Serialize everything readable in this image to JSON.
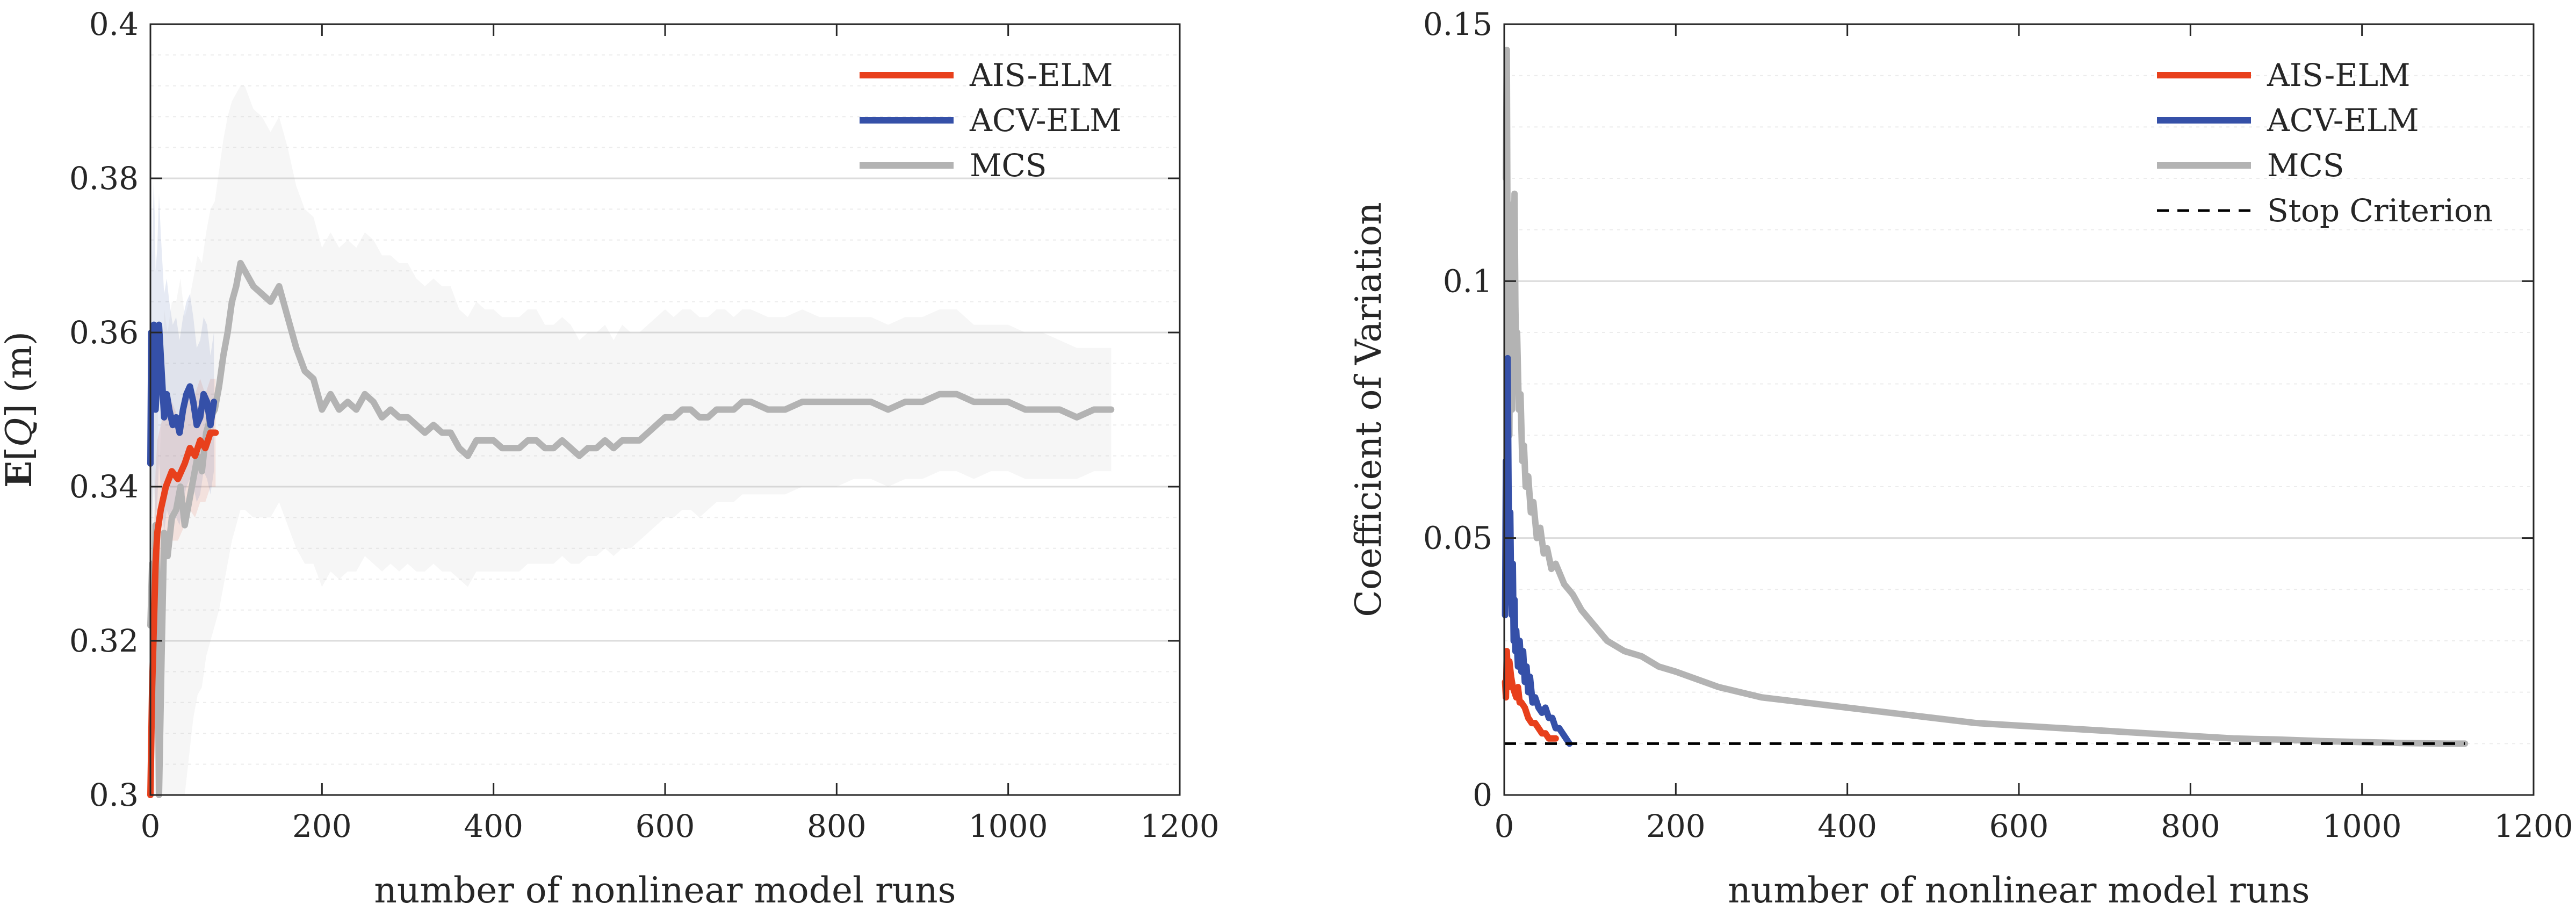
{
  "chart_data": [
    {
      "type": "line",
      "xlabel": "number of nonlinear model runs",
      "ylabel_prefix": "E",
      "ylabel_var": "Q",
      "ylabel_unit": " (m)",
      "xlim": [
        0,
        1200
      ],
      "ylim": [
        0.3,
        0.4
      ],
      "xticks": [
        0,
        200,
        400,
        600,
        800,
        1000,
        1200
      ],
      "yticks": [
        0.3,
        0.32,
        0.34,
        0.36,
        0.38,
        0.4
      ],
      "xtick_labels": [
        "0",
        "200",
        "400",
        "600",
        "800",
        "1000",
        "1200"
      ],
      "ytick_labels": [
        "0.3",
        "0.32",
        "0.34",
        "0.36",
        "0.38",
        "0.4"
      ],
      "grid": "horizontal",
      "legend_position": "top-right",
      "series": [
        {
          "name": "AIS-ELM",
          "color": "#e8401c",
          "x": [
            0,
            2,
            4,
            6,
            8,
            12,
            18,
            25,
            32,
            40,
            46,
            52,
            58,
            64,
            70,
            76
          ],
          "y": [
            0.3,
            0.314,
            0.322,
            0.33,
            0.334,
            0.337,
            0.34,
            0.342,
            0.341,
            0.343,
            0.345,
            0.344,
            0.346,
            0.345,
            0.347,
            0.347
          ],
          "band_lower": [
            0.3,
            0.3,
            0.31,
            0.318,
            0.322,
            0.326,
            0.33,
            0.333,
            0.333,
            0.335,
            0.337,
            0.336,
            0.338,
            0.338,
            0.34,
            0.34
          ],
          "band_upper": [
            0.32,
            0.33,
            0.334,
            0.342,
            0.346,
            0.348,
            0.35,
            0.351,
            0.349,
            0.351,
            0.353,
            0.352,
            0.354,
            0.352,
            0.354,
            0.354
          ]
        },
        {
          "name": "ACV-ELM",
          "color": "#3550a8",
          "x": [
            0,
            1,
            2,
            3,
            4,
            5,
            6,
            8,
            10,
            12,
            14,
            16,
            19,
            22,
            26,
            30,
            34,
            38,
            42,
            46,
            50,
            54,
            58,
            62,
            66,
            70,
            74
          ],
          "y": [
            0.343,
            0.36,
            0.351,
            0.357,
            0.361,
            0.356,
            0.35,
            0.354,
            0.361,
            0.357,
            0.353,
            0.349,
            0.352,
            0.35,
            0.348,
            0.349,
            0.347,
            0.35,
            0.352,
            0.353,
            0.351,
            0.348,
            0.349,
            0.352,
            0.351,
            0.348,
            0.351
          ],
          "band_lower": [
            0.315,
            0.34,
            0.335,
            0.338,
            0.342,
            0.338,
            0.335,
            0.338,
            0.343,
            0.34,
            0.337,
            0.334,
            0.337,
            0.336,
            0.335,
            0.336,
            0.335,
            0.338,
            0.34,
            0.341,
            0.34,
            0.338,
            0.339,
            0.342,
            0.341,
            0.339,
            0.342
          ],
          "band_upper": [
            0.37,
            0.38,
            0.37,
            0.376,
            0.38,
            0.375,
            0.368,
            0.371,
            0.378,
            0.373,
            0.369,
            0.365,
            0.367,
            0.364,
            0.361,
            0.362,
            0.359,
            0.362,
            0.364,
            0.365,
            0.362,
            0.358,
            0.359,
            0.362,
            0.361,
            0.357,
            0.36
          ]
        },
        {
          "name": "MCS",
          "color": "#b3b3b3",
          "x": [
            0,
            2,
            4,
            6,
            8,
            10,
            13,
            16,
            20,
            25,
            30,
            35,
            40,
            45,
            50,
            55,
            60,
            65,
            70,
            75,
            80,
            85,
            90,
            95,
            100,
            105,
            110,
            120,
            130,
            140,
            150,
            160,
            170,
            180,
            190,
            200,
            210,
            220,
            230,
            240,
            250,
            260,
            270,
            280,
            290,
            300,
            310,
            320,
            330,
            340,
            350,
            360,
            370,
            380,
            390,
            400,
            410,
            420,
            430,
            440,
            450,
            460,
            470,
            480,
            490,
            500,
            510,
            520,
            530,
            540,
            550,
            560,
            570,
            580,
            590,
            600,
            610,
            620,
            630,
            640,
            650,
            660,
            670,
            680,
            690,
            700,
            720,
            740,
            760,
            780,
            800,
            820,
            840,
            860,
            880,
            900,
            920,
            940,
            960,
            980,
            1000,
            1020,
            1040,
            1060,
            1080,
            1100,
            1120
          ],
          "y": [
            0.322,
            0.33,
            0.315,
            0.335,
            0.327,
            0.3,
            0.318,
            0.334,
            0.331,
            0.336,
            0.337,
            0.34,
            0.335,
            0.338,
            0.341,
            0.344,
            0.342,
            0.347,
            0.349,
            0.35,
            0.353,
            0.357,
            0.36,
            0.364,
            0.366,
            0.369,
            0.368,
            0.366,
            0.365,
            0.364,
            0.366,
            0.362,
            0.358,
            0.355,
            0.354,
            0.35,
            0.352,
            0.35,
            0.351,
            0.35,
            0.352,
            0.351,
            0.349,
            0.35,
            0.349,
            0.349,
            0.348,
            0.347,
            0.348,
            0.347,
            0.347,
            0.345,
            0.344,
            0.346,
            0.346,
            0.346,
            0.345,
            0.345,
            0.345,
            0.346,
            0.346,
            0.345,
            0.345,
            0.346,
            0.345,
            0.344,
            0.345,
            0.345,
            0.346,
            0.345,
            0.346,
            0.346,
            0.346,
            0.347,
            0.348,
            0.349,
            0.349,
            0.35,
            0.35,
            0.349,
            0.349,
            0.35,
            0.35,
            0.35,
            0.351,
            0.351,
            0.35,
            0.35,
            0.351,
            0.351,
            0.351,
            0.351,
            0.351,
            0.35,
            0.351,
            0.351,
            0.352,
            0.352,
            0.351,
            0.351,
            0.351,
            0.35,
            0.35,
            0.35,
            0.349,
            0.35,
            0.35
          ],
          "band_lower": [
            0.3,
            0.3,
            0.3,
            0.3,
            0.3,
            0.3,
            0.3,
            0.3,
            0.3,
            0.3,
            0.3,
            0.3,
            0.3,
            0.305,
            0.31,
            0.313,
            0.314,
            0.318,
            0.32,
            0.322,
            0.324,
            0.327,
            0.33,
            0.333,
            0.335,
            0.337,
            0.337,
            0.336,
            0.336,
            0.336,
            0.338,
            0.335,
            0.332,
            0.33,
            0.33,
            0.327,
            0.329,
            0.328,
            0.329,
            0.329,
            0.331,
            0.33,
            0.329,
            0.33,
            0.329,
            0.33,
            0.329,
            0.329,
            0.33,
            0.329,
            0.329,
            0.328,
            0.327,
            0.329,
            0.329,
            0.329,
            0.329,
            0.329,
            0.329,
            0.33,
            0.33,
            0.33,
            0.33,
            0.331,
            0.33,
            0.33,
            0.331,
            0.331,
            0.332,
            0.331,
            0.332,
            0.332,
            0.333,
            0.334,
            0.335,
            0.336,
            0.336,
            0.337,
            0.337,
            0.336,
            0.337,
            0.338,
            0.338,
            0.338,
            0.339,
            0.339,
            0.339,
            0.339,
            0.34,
            0.34,
            0.34,
            0.341,
            0.341,
            0.34,
            0.341,
            0.341,
            0.342,
            0.342,
            0.341,
            0.342,
            0.342,
            0.341,
            0.341,
            0.341,
            0.341,
            0.342,
            0.342
          ],
          "band_upper": [
            0.345,
            0.352,
            0.343,
            0.36,
            0.355,
            0.34,
            0.35,
            0.363,
            0.36,
            0.364,
            0.364,
            0.367,
            0.362,
            0.364,
            0.367,
            0.37,
            0.369,
            0.373,
            0.376,
            0.377,
            0.381,
            0.385,
            0.388,
            0.39,
            0.391,
            0.392,
            0.392,
            0.389,
            0.388,
            0.386,
            0.388,
            0.384,
            0.379,
            0.376,
            0.375,
            0.371,
            0.373,
            0.371,
            0.372,
            0.371,
            0.373,
            0.372,
            0.37,
            0.37,
            0.369,
            0.369,
            0.367,
            0.366,
            0.367,
            0.366,
            0.366,
            0.363,
            0.362,
            0.364,
            0.363,
            0.363,
            0.362,
            0.362,
            0.362,
            0.363,
            0.363,
            0.361,
            0.361,
            0.362,
            0.361,
            0.359,
            0.36,
            0.36,
            0.361,
            0.359,
            0.361,
            0.36,
            0.36,
            0.361,
            0.362,
            0.363,
            0.362,
            0.363,
            0.363,
            0.362,
            0.362,
            0.363,
            0.363,
            0.362,
            0.363,
            0.363,
            0.362,
            0.362,
            0.363,
            0.362,
            0.362,
            0.362,
            0.362,
            0.361,
            0.362,
            0.362,
            0.363,
            0.363,
            0.361,
            0.361,
            0.361,
            0.36,
            0.36,
            0.359,
            0.358,
            0.358,
            0.358
          ]
        }
      ]
    },
    {
      "type": "line",
      "xlabel": "number of nonlinear model runs",
      "ylabel": "Coefficient of Variation",
      "xlim": [
        0,
        1200
      ],
      "ylim": [
        0,
        0.15
      ],
      "xticks": [
        0,
        200,
        400,
        600,
        800,
        1000,
        1200
      ],
      "yticks": [
        0,
        0.05,
        0.1,
        0.15
      ],
      "xtick_labels": [
        "0",
        "200",
        "400",
        "600",
        "800",
        "1000",
        "1200"
      ],
      "ytick_labels": [
        "0",
        "0.05",
        "0.1",
        "0.15"
      ],
      "grid": "horizontal",
      "legend_position": "top-right",
      "series": [
        {
          "name": "AIS-ELM",
          "color": "#e8401c",
          "x": [
            1,
            2,
            3,
            4,
            5,
            6,
            8,
            10,
            12,
            14,
            16,
            18,
            20,
            24,
            28,
            32,
            36,
            40,
            44,
            48,
            52,
            56,
            60
          ],
          "y": [
            0.022,
            0.019,
            0.028,
            0.024,
            0.021,
            0.026,
            0.023,
            0.021,
            0.02,
            0.019,
            0.021,
            0.018,
            0.018,
            0.017,
            0.015,
            0.014,
            0.014,
            0.013,
            0.012,
            0.012,
            0.011,
            0.011,
            0.011
          ]
        },
        {
          "name": "ACV-ELM",
          "color": "#3550a8",
          "x": [
            1,
            2,
            3,
            4,
            5,
            6,
            7,
            8,
            9,
            10,
            11,
            12,
            13,
            14,
            16,
            18,
            20,
            22,
            24,
            26,
            28,
            30,
            33,
            36,
            40,
            44,
            48,
            52,
            56,
            60,
            64,
            68,
            72,
            76
          ],
          "y": [
            0.035,
            0.065,
            0.05,
            0.085,
            0.06,
            0.045,
            0.055,
            0.04,
            0.035,
            0.045,
            0.03,
            0.038,
            0.028,
            0.032,
            0.025,
            0.03,
            0.024,
            0.028,
            0.022,
            0.025,
            0.02,
            0.023,
            0.018,
            0.019,
            0.017,
            0.016,
            0.017,
            0.015,
            0.015,
            0.013,
            0.013,
            0.012,
            0.011,
            0.01
          ]
        },
        {
          "name": "MCS",
          "color": "#b3b3b3",
          "x": [
            2,
            3,
            4,
            5,
            6,
            7,
            8,
            9,
            10,
            11,
            12,
            13,
            14,
            15,
            17,
            19,
            21,
            23,
            25,
            28,
            31,
            34,
            38,
            42,
            46,
            50,
            55,
            60,
            70,
            80,
            90,
            100,
            120,
            140,
            160,
            180,
            200,
            250,
            300,
            350,
            400,
            450,
            500,
            550,
            600,
            650,
            700,
            750,
            800,
            850,
            900,
            950,
            1000,
            1050,
            1100,
            1120
          ],
          "y": [
            0.12,
            0.145,
            0.1,
            0.08,
            0.07,
            0.1,
            0.09,
            0.075,
            0.115,
            0.1,
            0.117,
            0.095,
            0.085,
            0.09,
            0.075,
            0.078,
            0.065,
            0.068,
            0.06,
            0.062,
            0.055,
            0.057,
            0.05,
            0.052,
            0.047,
            0.048,
            0.044,
            0.045,
            0.041,
            0.039,
            0.036,
            0.034,
            0.03,
            0.028,
            0.027,
            0.025,
            0.024,
            0.021,
            0.019,
            0.018,
            0.017,
            0.016,
            0.015,
            0.014,
            0.0135,
            0.013,
            0.0125,
            0.012,
            0.0115,
            0.011,
            0.0108,
            0.0105,
            0.0103,
            0.0101,
            0.01,
            0.01
          ]
        },
        {
          "name": "Stop Criterion",
          "color": "#000000",
          "style": "dashed",
          "x": [
            0,
            1120
          ],
          "y": [
            0.01,
            0.01
          ]
        }
      ]
    }
  ]
}
